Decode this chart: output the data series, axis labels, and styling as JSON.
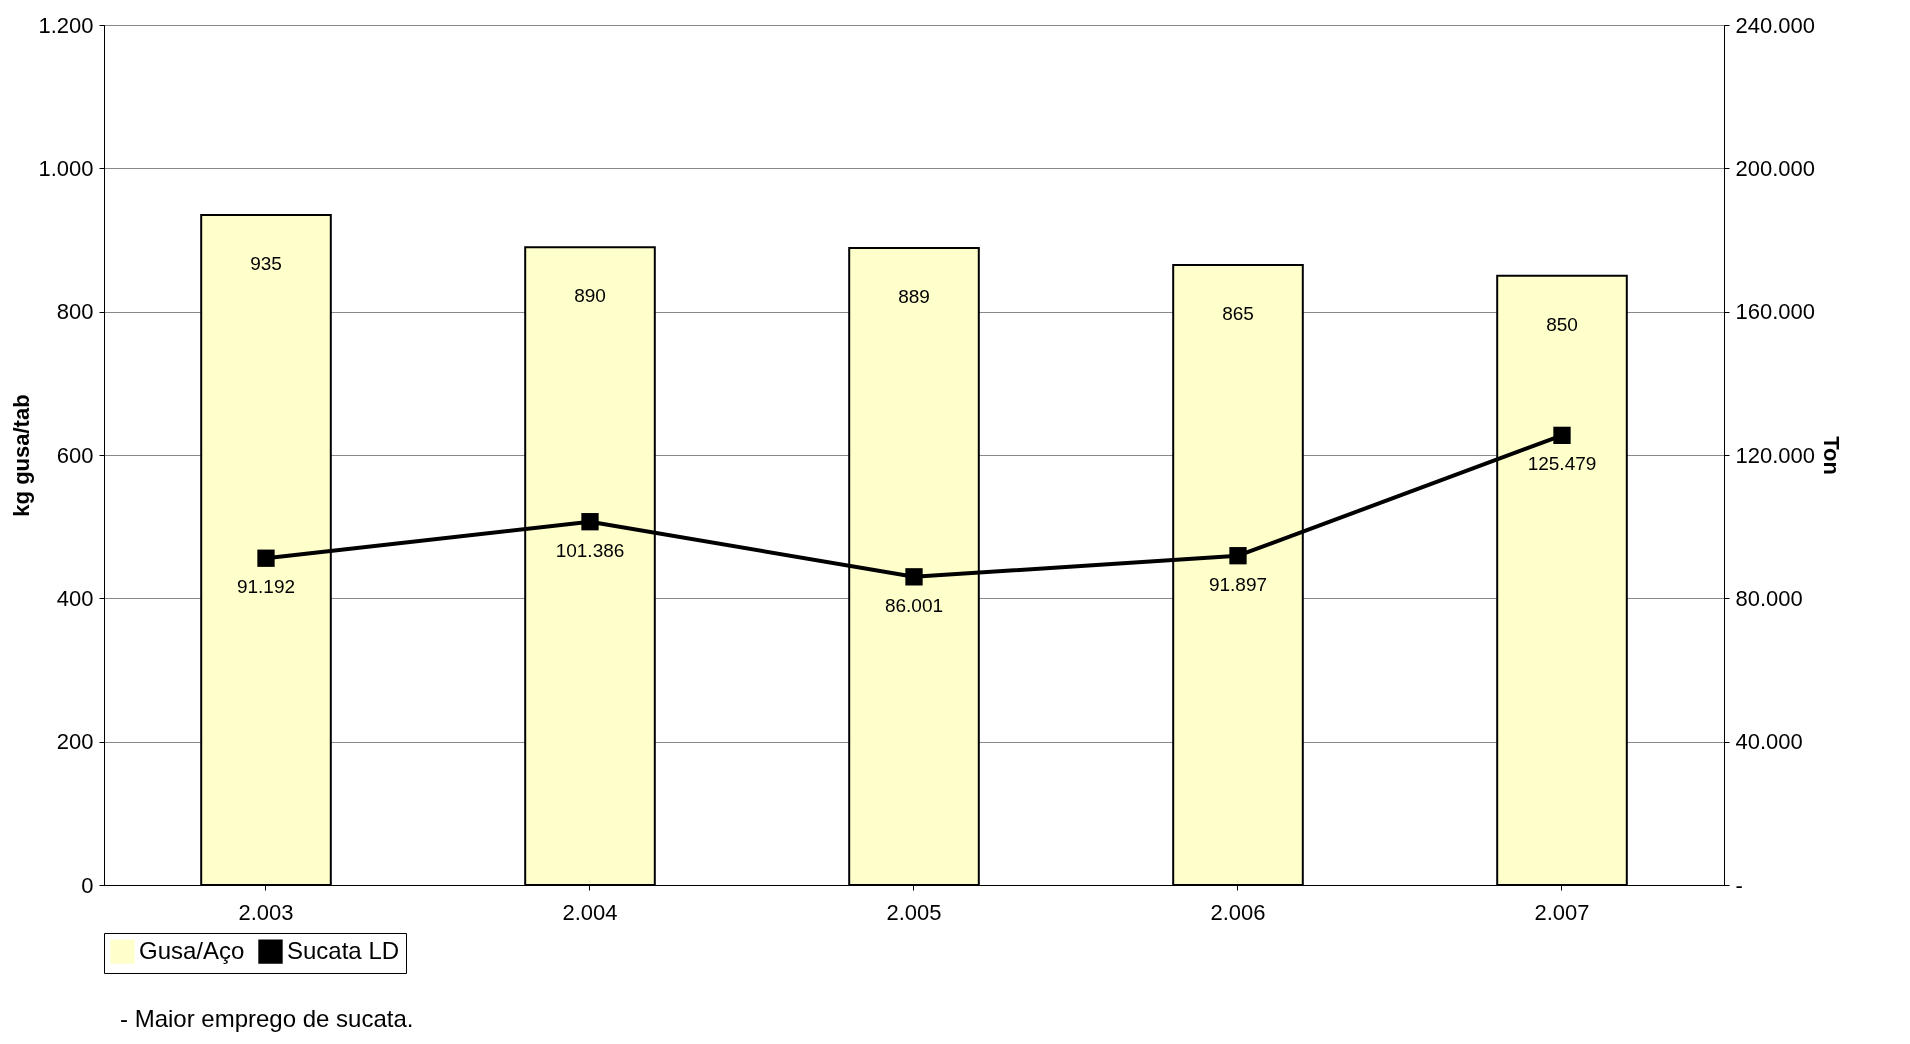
{
  "chart_data": {
    "type": "bar",
    "categories": [
      "2.003",
      "2.004",
      "2.005",
      "2.006",
      "2.007"
    ],
    "series": [
      {
        "name": "Gusa/Aço",
        "color": "#ffffcc",
        "values": [
          935,
          890,
          889,
          865,
          850
        ],
        "value_labels": [
          "935",
          "890",
          "889",
          "865",
          "850"
        ]
      },
      {
        "name": "Sucata LD",
        "type": "line",
        "axis": "y2",
        "color": "#000000",
        "marker": "square",
        "values": [
          91192,
          101386,
          86001,
          91897,
          125479
        ],
        "value_labels": [
          "91.192",
          "101.386",
          "86.001",
          "91.897",
          "125.479"
        ]
      }
    ],
    "ylabel": "kg gusa/tab",
    "y2label": "Ton",
    "ylim": [
      0,
      1200
    ],
    "yticks": [
      0,
      200,
      400,
      600,
      800,
      {
        "value": 1000,
        "label": "1.000"
      },
      {
        "value": 1200,
        "label": "1.200"
      }
    ],
    "y2lim": [
      0,
      240000
    ],
    "y2ticks": [
      {
        "value": 0,
        "label": "-"
      },
      {
        "value": 40000,
        "label": "40.000"
      },
      {
        "value": 80000,
        "label": "80.000"
      },
      {
        "value": 120000,
        "label": "120.000"
      },
      {
        "value": 160000,
        "label": "160.000"
      },
      {
        "value": 200000,
        "label": "200.000"
      },
      {
        "value": 240000,
        "label": "240.000"
      }
    ],
    "grid": "y",
    "legend": "bottom",
    "annotations": [
      "- Maior emprego de sucata."
    ]
  }
}
